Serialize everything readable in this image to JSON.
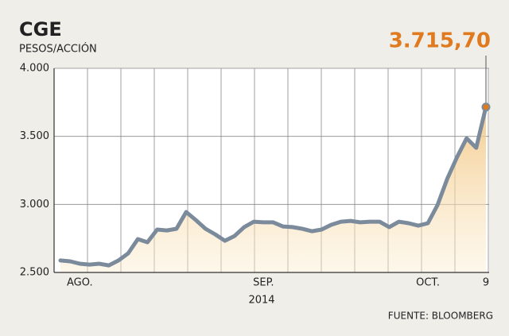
{
  "chart_data": {
    "type": "line",
    "title": "CGE",
    "subtitle": "PESOS/ACCIÓN",
    "source": "FUENTE: BLOOMBERG",
    "year_label": "2014",
    "categories": [
      null,
      null,
      "AGO.",
      null,
      null,
      null,
      null,
      null,
      null,
      null,
      null,
      null,
      null,
      null,
      null,
      null,
      null,
      null,
      null,
      null,
      null,
      "SEP.",
      null,
      null,
      null,
      null,
      null,
      null,
      null,
      null,
      null,
      null,
      null,
      null,
      null,
      null,
      null,
      null,
      "OCT.",
      null,
      null,
      null,
      null,
      null,
      "9"
    ],
    "series": [
      {
        "name": "CGE",
        "color": "#7b8b9c",
        "values": [
          2588,
          2582,
          2564,
          2558,
          2564,
          2552,
          2588,
          2640,
          2745,
          2722,
          2815,
          2809,
          2821,
          2944,
          2885,
          2821,
          2780,
          2733,
          2768,
          2833,
          2873,
          2868,
          2868,
          2838,
          2833,
          2821,
          2803,
          2815,
          2850,
          2873,
          2879,
          2868,
          2873,
          2873,
          2833,
          2873,
          2862,
          2844,
          2862,
          2996,
          3189,
          3346,
          3486,
          3416,
          3715.7
        ],
        "value_labels": [
          null,
          null,
          null,
          null,
          null,
          null,
          null,
          null,
          null,
          null,
          null,
          null,
          null,
          null,
          null,
          null,
          null,
          null,
          null,
          null,
          null,
          null,
          null,
          null,
          null,
          null,
          null,
          null,
          null,
          null,
          null,
          null,
          null,
          null,
          null,
          null,
          null,
          null,
          null,
          null,
          null,
          null,
          null,
          null,
          "3.715,70"
        ]
      }
    ],
    "ylim": [
      2500,
      4000
    ],
    "yticks": [
      {
        "value": 2500,
        "label": "2.500"
      },
      {
        "value": 3000,
        "label": "3.000"
      },
      {
        "value": 3500,
        "label": "3.500"
      },
      {
        "value": 4000,
        "label": "4.000"
      }
    ],
    "grid": true,
    "label_color": "#e07a1e"
  }
}
